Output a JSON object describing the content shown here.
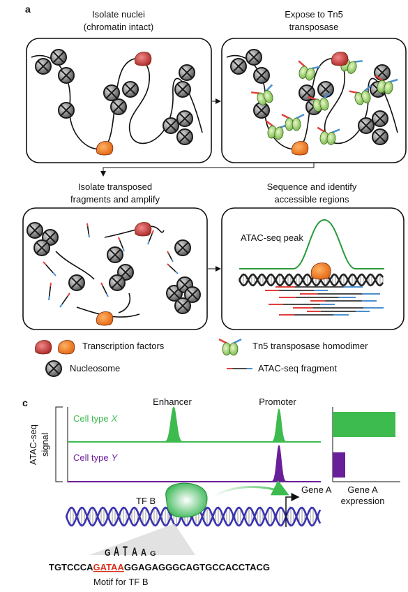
{
  "panel_a": {
    "label": "a",
    "steps": [
      {
        "title": [
          "Isolate nuclei",
          "(chromatin intact)"
        ]
      },
      {
        "title": [
          "Expose to Tn5",
          "transposase"
        ]
      },
      {
        "title": [
          "Isolate transposed",
          "fragments and amplify"
        ]
      },
      {
        "title": [
          "Sequence and identify",
          "accessible regions"
        ],
        "annotation": "ATAC-seq peak"
      }
    ],
    "legend": [
      {
        "label": "Transcription factors"
      },
      {
        "label": "Tn5 transposase homodimer"
      },
      {
        "label": "Nucleosome"
      },
      {
        "label": "ATAC-seq fragment"
      }
    ]
  },
  "panel_c": {
    "label": "c",
    "y_label": [
      "ATAC-seq",
      "signal"
    ],
    "peaks": [
      "Enhancer",
      "Promoter"
    ],
    "tracks": [
      {
        "name": "Cell type",
        "variable": "X",
        "color": "#3dbb4f"
      },
      {
        "name": "Cell type",
        "variable": "Y",
        "color": "#6a1f9a"
      }
    ],
    "expression": {
      "label": [
        "Gene A",
        "expression"
      ],
      "values": [
        1,
        0.2
      ]
    },
    "tf": "TF B",
    "gene": "Gene A",
    "motif_logo": [
      "G",
      "A",
      "T",
      "A",
      "A",
      "G"
    ],
    "sequence": [
      "TGTCCCA",
      "GATAA",
      "GGAGAGGGCAGTGCCACCTACG"
    ],
    "motif_label": "Motif for TF B"
  }
}
